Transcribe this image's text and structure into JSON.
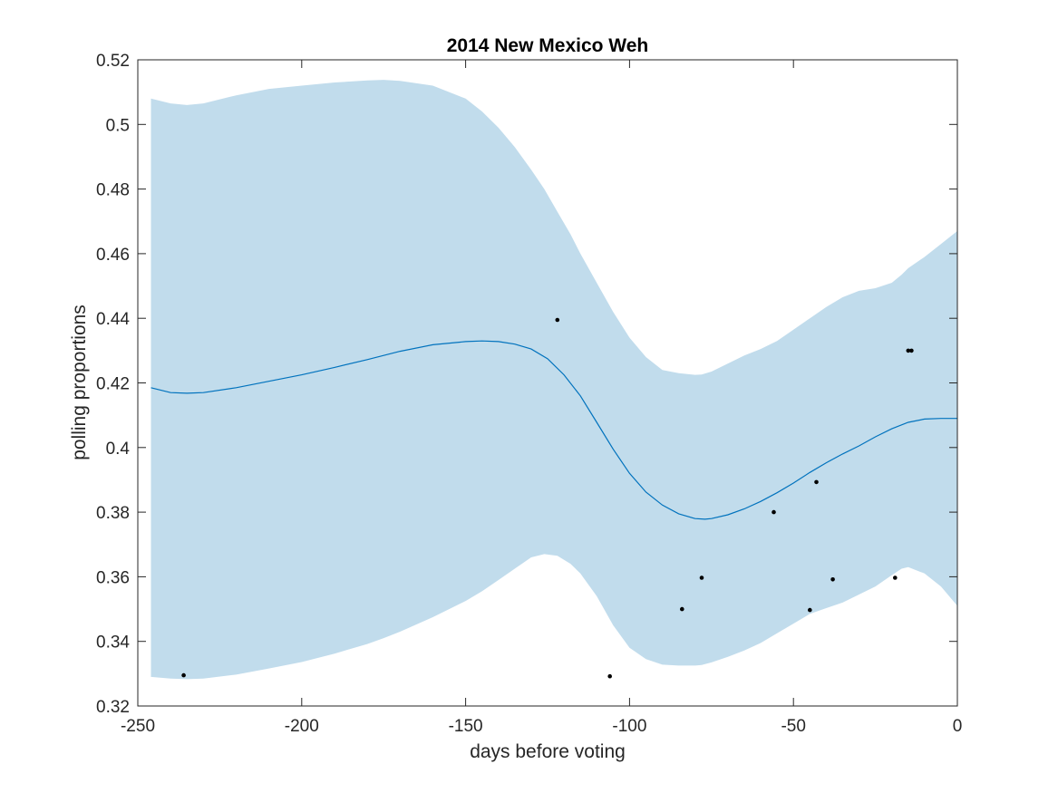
{
  "chart_data": {
    "type": "line",
    "title": "2014 New Mexico Weh",
    "xlabel": "days before voting",
    "ylabel": "polling proportions",
    "xlim": [
      -250,
      0
    ],
    "ylim": [
      0.32,
      0.52
    ],
    "xticks": [
      -250,
      -200,
      -150,
      -100,
      -50,
      0
    ],
    "xtick_labels": [
      "-250",
      "-200",
      "-150",
      "-100",
      "-50",
      "0"
    ],
    "yticks": [
      0.32,
      0.34,
      0.36,
      0.38,
      0.4,
      0.42,
      0.44,
      0.46,
      0.48,
      0.5,
      0.52
    ],
    "ytick_labels": [
      "0.32",
      "0.34",
      "0.36",
      "0.38",
      "0.4",
      "0.42",
      "0.44",
      "0.46",
      "0.48",
      "0.5",
      "0.52"
    ],
    "grid": false,
    "legend": "none",
    "band": {
      "x": [
        -246,
        -240,
        -235,
        -230,
        -220,
        -210,
        -200,
        -190,
        -180,
        -175,
        -170,
        -160,
        -150,
        -145,
        -140,
        -135,
        -130,
        -126,
        -122,
        -118,
        -115,
        -110,
        -105,
        -100,
        -95,
        -90,
        -85,
        -80,
        -78,
        -75,
        -70,
        -65,
        -60,
        -55,
        -50,
        -45,
        -40,
        -35,
        -30,
        -25,
        -20,
        -17,
        -15,
        -10,
        -5,
        0
      ],
      "upper": [
        0.508,
        0.5065,
        0.506,
        0.5065,
        0.509,
        0.511,
        0.512,
        0.513,
        0.5136,
        0.5138,
        0.5135,
        0.512,
        0.508,
        0.504,
        0.499,
        0.493,
        0.486,
        0.48,
        0.473,
        0.466,
        0.46,
        0.451,
        0.442,
        0.434,
        0.428,
        0.424,
        0.423,
        0.4225,
        0.4226,
        0.4235,
        0.426,
        0.4285,
        0.4305,
        0.433,
        0.4365,
        0.44,
        0.4435,
        0.4465,
        0.4485,
        0.4493,
        0.451,
        0.4535,
        0.4555,
        0.459,
        0.463,
        0.467
      ],
      "lower": [
        0.329,
        0.3285,
        0.3283,
        0.3285,
        0.3297,
        0.3316,
        0.3336,
        0.3362,
        0.3392,
        0.341,
        0.343,
        0.3475,
        0.3525,
        0.3555,
        0.359,
        0.3625,
        0.366,
        0.367,
        0.3665,
        0.364,
        0.361,
        0.354,
        0.345,
        0.338,
        0.3345,
        0.3328,
        0.3325,
        0.3325,
        0.3327,
        0.3335,
        0.3352,
        0.3372,
        0.3395,
        0.3425,
        0.3455,
        0.3485,
        0.3503,
        0.352,
        0.3545,
        0.357,
        0.3605,
        0.3625,
        0.363,
        0.361,
        0.357,
        0.351
      ]
    },
    "series": [
      {
        "type": "line",
        "color": "#0072BD",
        "x": [
          -246,
          -240,
          -235,
          -230,
          -220,
          -210,
          -200,
          -190,
          -180,
          -170,
          -160,
          -150,
          -145,
          -140,
          -135,
          -130,
          -125,
          -120,
          -115,
          -110,
          -105,
          -100,
          -95,
          -90,
          -85,
          -80,
          -77,
          -75,
          -70,
          -65,
          -60,
          -55,
          -50,
          -45,
          -40,
          -35,
          -30,
          -25,
          -20,
          -15,
          -10,
          -5,
          0
        ],
        "y": [
          0.4185,
          0.417,
          0.4168,
          0.417,
          0.4185,
          0.4205,
          0.4225,
          0.4248,
          0.4272,
          0.4298,
          0.4318,
          0.4328,
          0.433,
          0.4328,
          0.432,
          0.4305,
          0.4275,
          0.4225,
          0.416,
          0.4078,
          0.3995,
          0.392,
          0.3862,
          0.3822,
          0.3795,
          0.378,
          0.3778,
          0.378,
          0.3792,
          0.381,
          0.3833,
          0.386,
          0.389,
          0.3923,
          0.3953,
          0.398,
          0.4005,
          0.4033,
          0.4058,
          0.4078,
          0.4088,
          0.409,
          0.409
        ]
      },
      {
        "type": "scatter",
        "color": "#000000",
        "x": [
          -236,
          -122,
          -106,
          -84,
          -78,
          -56,
          -45,
          -43,
          -38,
          -19,
          -15,
          -14
        ],
        "y": [
          0.3295,
          0.4395,
          0.3292,
          0.35,
          0.3597,
          0.38,
          0.3497,
          0.3893,
          0.3592,
          0.3597,
          0.43,
          0.43
        ]
      }
    ]
  },
  "colors": {
    "band_fill": "#c1dcec",
    "line": "#0072BD",
    "points": "#000000",
    "axes": "#262626"
  }
}
